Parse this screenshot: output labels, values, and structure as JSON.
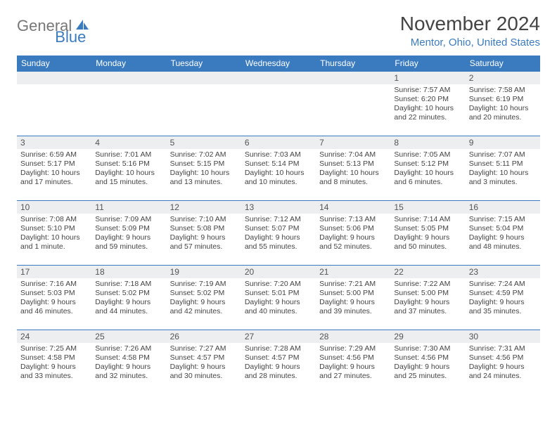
{
  "logo": {
    "part1": "General",
    "part2": "Blue"
  },
  "title": "November 2024",
  "location": "Mentor, Ohio, United States",
  "colors": {
    "accent": "#3a7bbf",
    "header_text": "#ffffff",
    "daynum_bg": "#eceeef",
    "border": "#3a7bbf",
    "text": "#444444"
  },
  "days_of_week": [
    "Sunday",
    "Monday",
    "Tuesday",
    "Wednesday",
    "Thursday",
    "Friday",
    "Saturday"
  ],
  "first_weekday_index": 5,
  "days_in_month": 30,
  "cells": {
    "1": {
      "sunrise": "7:57 AM",
      "sunset": "6:20 PM",
      "daylight": "10 hours and 22 minutes."
    },
    "2": {
      "sunrise": "7:58 AM",
      "sunset": "6:19 PM",
      "daylight": "10 hours and 20 minutes."
    },
    "3": {
      "sunrise": "6:59 AM",
      "sunset": "5:17 PM",
      "daylight": "10 hours and 17 minutes."
    },
    "4": {
      "sunrise": "7:01 AM",
      "sunset": "5:16 PM",
      "daylight": "10 hours and 15 minutes."
    },
    "5": {
      "sunrise": "7:02 AM",
      "sunset": "5:15 PM",
      "daylight": "10 hours and 13 minutes."
    },
    "6": {
      "sunrise": "7:03 AM",
      "sunset": "5:14 PM",
      "daylight": "10 hours and 10 minutes."
    },
    "7": {
      "sunrise": "7:04 AM",
      "sunset": "5:13 PM",
      "daylight": "10 hours and 8 minutes."
    },
    "8": {
      "sunrise": "7:05 AM",
      "sunset": "5:12 PM",
      "daylight": "10 hours and 6 minutes."
    },
    "9": {
      "sunrise": "7:07 AM",
      "sunset": "5:11 PM",
      "daylight": "10 hours and 3 minutes."
    },
    "10": {
      "sunrise": "7:08 AM",
      "sunset": "5:10 PM",
      "daylight": "10 hours and 1 minute."
    },
    "11": {
      "sunrise": "7:09 AM",
      "sunset": "5:09 PM",
      "daylight": "9 hours and 59 minutes."
    },
    "12": {
      "sunrise": "7:10 AM",
      "sunset": "5:08 PM",
      "daylight": "9 hours and 57 minutes."
    },
    "13": {
      "sunrise": "7:12 AM",
      "sunset": "5:07 PM",
      "daylight": "9 hours and 55 minutes."
    },
    "14": {
      "sunrise": "7:13 AM",
      "sunset": "5:06 PM",
      "daylight": "9 hours and 52 minutes."
    },
    "15": {
      "sunrise": "7:14 AM",
      "sunset": "5:05 PM",
      "daylight": "9 hours and 50 minutes."
    },
    "16": {
      "sunrise": "7:15 AM",
      "sunset": "5:04 PM",
      "daylight": "9 hours and 48 minutes."
    },
    "17": {
      "sunrise": "7:16 AM",
      "sunset": "5:03 PM",
      "daylight": "9 hours and 46 minutes."
    },
    "18": {
      "sunrise": "7:18 AM",
      "sunset": "5:02 PM",
      "daylight": "9 hours and 44 minutes."
    },
    "19": {
      "sunrise": "7:19 AM",
      "sunset": "5:02 PM",
      "daylight": "9 hours and 42 minutes."
    },
    "20": {
      "sunrise": "7:20 AM",
      "sunset": "5:01 PM",
      "daylight": "9 hours and 40 minutes."
    },
    "21": {
      "sunrise": "7:21 AM",
      "sunset": "5:00 PM",
      "daylight": "9 hours and 39 minutes."
    },
    "22": {
      "sunrise": "7:22 AM",
      "sunset": "5:00 PM",
      "daylight": "9 hours and 37 minutes."
    },
    "23": {
      "sunrise": "7:24 AM",
      "sunset": "4:59 PM",
      "daylight": "9 hours and 35 minutes."
    },
    "24": {
      "sunrise": "7:25 AM",
      "sunset": "4:58 PM",
      "daylight": "9 hours and 33 minutes."
    },
    "25": {
      "sunrise": "7:26 AM",
      "sunset": "4:58 PM",
      "daylight": "9 hours and 32 minutes."
    },
    "26": {
      "sunrise": "7:27 AM",
      "sunset": "4:57 PM",
      "daylight": "9 hours and 30 minutes."
    },
    "27": {
      "sunrise": "7:28 AM",
      "sunset": "4:57 PM",
      "daylight": "9 hours and 28 minutes."
    },
    "28": {
      "sunrise": "7:29 AM",
      "sunset": "4:56 PM",
      "daylight": "9 hours and 27 minutes."
    },
    "29": {
      "sunrise": "7:30 AM",
      "sunset": "4:56 PM",
      "daylight": "9 hours and 25 minutes."
    },
    "30": {
      "sunrise": "7:31 AM",
      "sunset": "4:56 PM",
      "daylight": "9 hours and 24 minutes."
    }
  },
  "labels": {
    "sunrise": "Sunrise:",
    "sunset": "Sunset:",
    "daylight": "Daylight:"
  }
}
